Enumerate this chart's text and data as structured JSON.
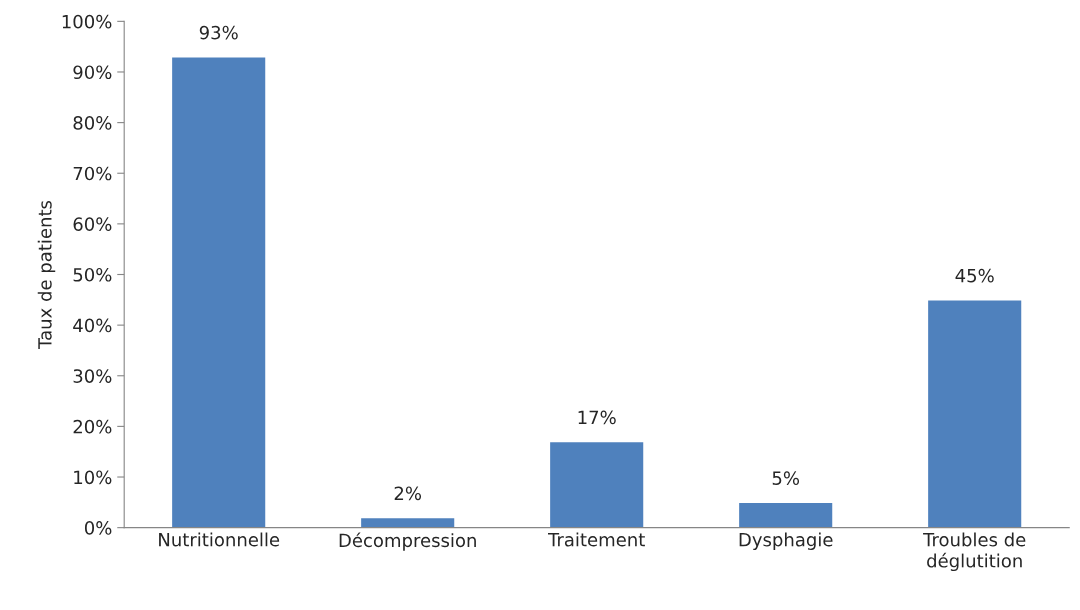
{
  "chart_data": {
    "type": "bar",
    "ylabel": "Taux de patients",
    "categories": [
      "Nutritionnelle",
      "Décompression",
      "Traitement",
      "Dysphagie",
      "Troubles de\ndéglutition"
    ],
    "values": [
      93,
      2,
      17,
      5,
      45
    ],
    "value_labels": [
      "93%",
      "2%",
      "17%",
      "5%",
      "45%"
    ],
    "color": "#4f81bd",
    "ylim": [
      0,
      100
    ],
    "yticks": [
      {
        "value": 0,
        "label": "0%"
      },
      {
        "value": 10,
        "label": "10%"
      },
      {
        "value": 20,
        "label": "20%"
      },
      {
        "value": 30,
        "label": "30%"
      },
      {
        "value": 40,
        "label": "40%"
      },
      {
        "value": 50,
        "label": "50%"
      },
      {
        "value": 60,
        "label": "60%"
      },
      {
        "value": 70,
        "label": "70%"
      },
      {
        "value": 80,
        "label": "80%"
      },
      {
        "value": 90,
        "label": "90%"
      },
      {
        "value": 100,
        "label": "100%"
      }
    ],
    "grid": false,
    "legend": false
  }
}
